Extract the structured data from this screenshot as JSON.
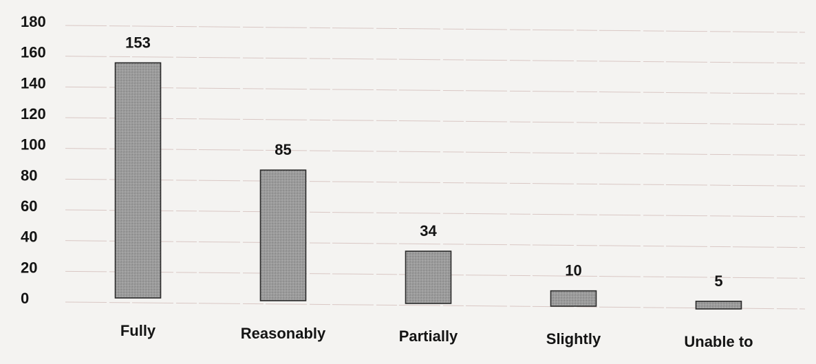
{
  "chart_data": {
    "type": "bar",
    "title": "",
    "xlabel": "",
    "ylabel": "",
    "categories": [
      "Fully",
      "Reasonably",
      "Partially",
      "Slightly",
      "Unable to"
    ],
    "values": [
      153,
      85,
      34,
      10,
      5
    ],
    "data_labels": [
      "153",
      "85",
      "34",
      "10",
      "5"
    ],
    "ylim": [
      0,
      180
    ],
    "y_ticks": [
      0,
      20,
      40,
      60,
      80,
      100,
      120,
      140,
      160,
      180
    ],
    "y_tick_labels": [
      "0",
      "20",
      "40",
      "60",
      "80",
      "100",
      "120",
      "140",
      "160",
      "180"
    ],
    "grid": true,
    "legend": "none",
    "colors": {
      "bar_fill": "#9a9a9a",
      "bar_stroke": "#2a2a2a",
      "grid": "#d9c7c4",
      "background": "#f4f3f1",
      "text": "#141414"
    }
  }
}
